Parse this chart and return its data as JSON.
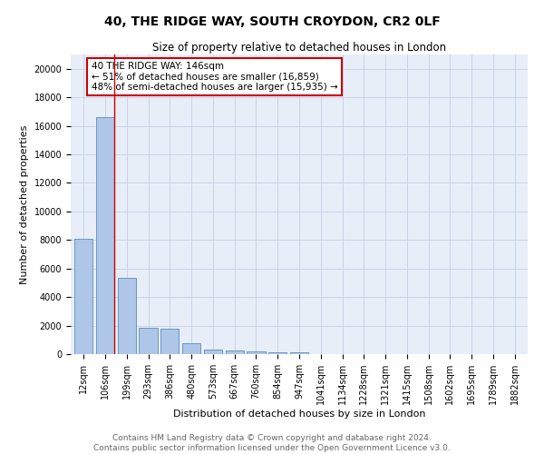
{
  "title": "40, THE RIDGE WAY, SOUTH CROYDON, CR2 0LF",
  "subtitle": "Size of property relative to detached houses in London",
  "xlabel": "Distribution of detached houses by size in London",
  "ylabel": "Number of detached properties",
  "footer_line1": "Contains HM Land Registry data © Crown copyright and database right 2024.",
  "footer_line2": "Contains public sector information licensed under the Open Government Licence v3.0.",
  "bar_labels": [
    "12sqm",
    "106sqm",
    "199sqm",
    "293sqm",
    "386sqm",
    "480sqm",
    "573sqm",
    "667sqm",
    "760sqm",
    "854sqm",
    "947sqm",
    "1041sqm",
    "1134sqm",
    "1228sqm",
    "1321sqm",
    "1415sqm",
    "1508sqm",
    "1602sqm",
    "1695sqm",
    "1789sqm",
    "1882sqm"
  ],
  "bar_values": [
    8100,
    16600,
    5350,
    1850,
    1800,
    750,
    350,
    250,
    180,
    150,
    120,
    0,
    0,
    0,
    0,
    0,
    0,
    0,
    0,
    0,
    0
  ],
  "bar_color": "#aec6e8",
  "bar_edge_color": "#5b8db8",
  "annotation_line1": "40 THE RIDGE WAY: 146sqm",
  "annotation_line2": "← 51% of detached houses are smaller (16,859)",
  "annotation_line3": "48% of semi-detached houses are larger (15,935) →",
  "annotation_box_color": "#ffffff",
  "annotation_border_color": "#cc0000",
  "vline_x": 1.42,
  "vline_color": "#cc0000",
  "ylim": [
    0,
    21000
  ],
  "yticks": [
    0,
    2000,
    4000,
    6000,
    8000,
    10000,
    12000,
    14000,
    16000,
    18000,
    20000
  ],
  "grid_color": "#c8d4e8",
  "bg_color": "#e8eef8",
  "title_fontsize": 10,
  "subtitle_fontsize": 8.5,
  "axis_label_fontsize": 8,
  "tick_fontsize": 7,
  "annotation_fontsize": 7.5,
  "footer_fontsize": 6.5
}
